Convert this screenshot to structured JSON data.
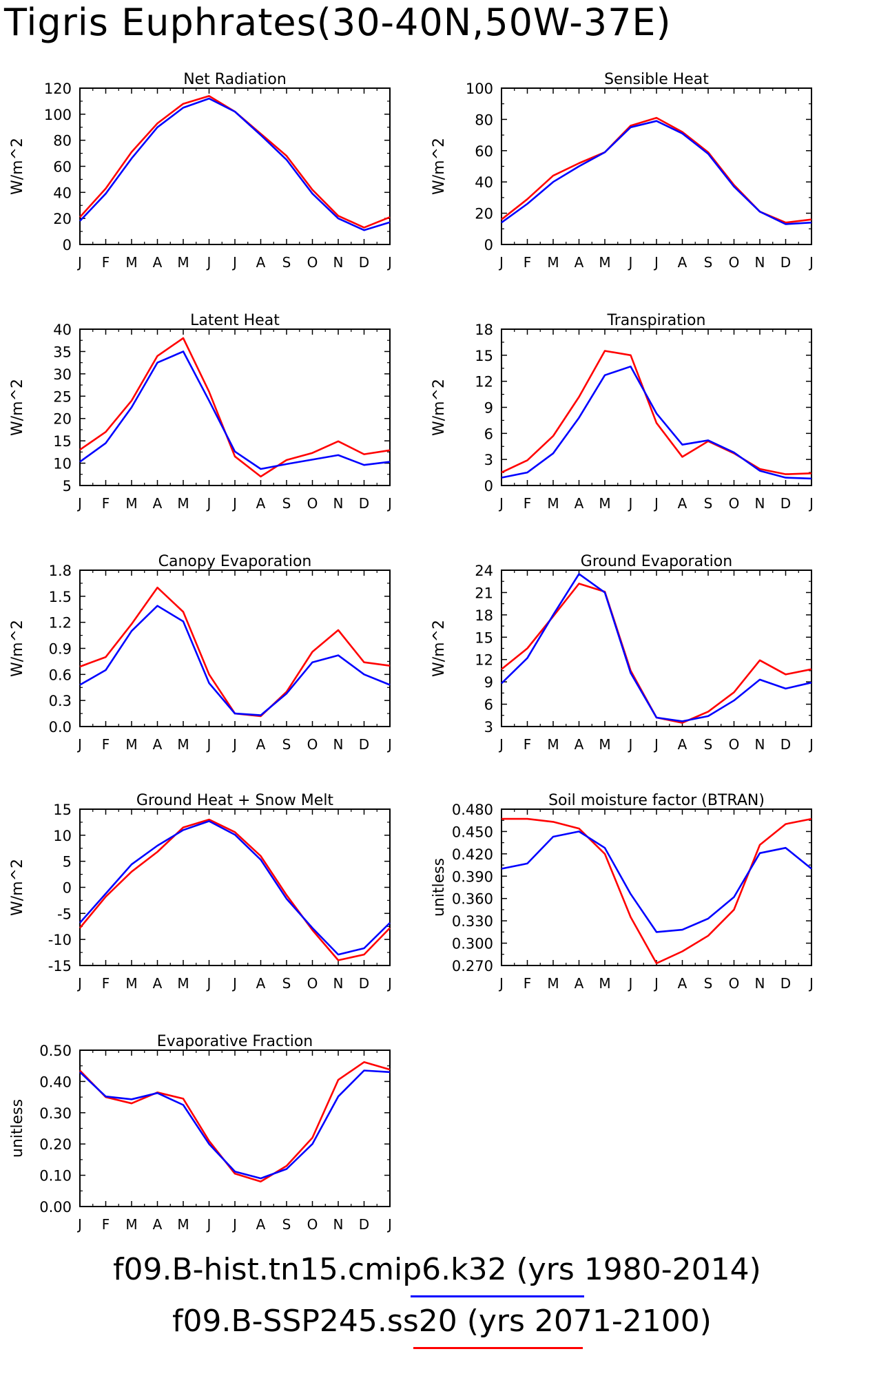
{
  "page": {
    "title": "Tigris Euphrates(30-40N,50W-37E)"
  },
  "colors": {
    "hist": "#0000ff",
    "future": "#ff0000"
  },
  "legend": [
    {
      "label": "f09.B-hist.tn15.cmip6.k32 (yrs 1980-2014)",
      "color": "#0000ff"
    },
    {
      "label": "f09.B-SSP245.ss20 (yrs 2071-2100)",
      "color": "#ff0000"
    }
  ],
  "chart_data": [
    {
      "type": "line",
      "title": "Net Radiation",
      "ylabel": "W/m^2",
      "categories": [
        "J",
        "F",
        "M",
        "A",
        "M",
        "J",
        "J",
        "A",
        "S",
        "O",
        "N",
        "D",
        "J"
      ],
      "ylim": [
        0,
        120
      ],
      "yticks": [
        0,
        20,
        40,
        60,
        80,
        100,
        120
      ],
      "ytick_labels": [
        "0",
        "20",
        "40",
        "60",
        "80",
        "100",
        "120"
      ],
      "series": [
        {
          "color": "#ff0000",
          "values": [
            21,
            43,
            71,
            93,
            108,
            114,
            102,
            85,
            68,
            42,
            22,
            13,
            21
          ]
        },
        {
          "color": "#0000ff",
          "values": [
            18,
            39,
            66,
            90,
            105,
            112,
            102,
            84,
            65,
            39,
            20,
            11,
            17
          ]
        }
      ]
    },
    {
      "type": "line",
      "title": "Sensible Heat",
      "ylabel": "W/m^2",
      "categories": [
        "J",
        "F",
        "M",
        "A",
        "M",
        "J",
        "J",
        "A",
        "S",
        "O",
        "N",
        "D",
        "J"
      ],
      "ylim": [
        0,
        100
      ],
      "yticks": [
        0,
        20,
        40,
        60,
        80,
        100
      ],
      "ytick_labels": [
        "0",
        "20",
        "40",
        "60",
        "80",
        "100"
      ],
      "series": [
        {
          "color": "#ff0000",
          "values": [
            16,
            29,
            44,
            52,
            59,
            76,
            81,
            72,
            59,
            38,
            21,
            14,
            16
          ]
        },
        {
          "color": "#0000ff",
          "values": [
            14,
            26,
            40,
            50,
            59,
            75,
            79,
            71,
            58,
            37,
            21,
            13,
            14
          ]
        }
      ]
    },
    {
      "type": "line",
      "title": "Latent Heat",
      "ylabel": "W/m^2",
      "categories": [
        "J",
        "F",
        "M",
        "A",
        "M",
        "J",
        "J",
        "A",
        "S",
        "O",
        "N",
        "D",
        "J"
      ],
      "ylim": [
        5,
        40
      ],
      "yticks": [
        5,
        10,
        15,
        20,
        25,
        30,
        35,
        40
      ],
      "ytick_labels": [
        "5",
        "10",
        "15",
        "20",
        "25",
        "30",
        "35",
        "40"
      ],
      "series": [
        {
          "color": "#ff0000",
          "values": [
            13,
            17,
            24,
            34,
            38,
            26,
            11.5,
            7,
            10.7,
            12.3,
            14.9,
            12,
            12.9
          ]
        },
        {
          "color": "#0000ff",
          "values": [
            10.3,
            14.5,
            22.5,
            32.5,
            35,
            24,
            12.6,
            8.7,
            9.8,
            10.8,
            11.8,
            9.6,
            10.3
          ]
        }
      ]
    },
    {
      "type": "line",
      "title": "Transpiration",
      "ylabel": "W/m^2",
      "categories": [
        "J",
        "F",
        "M",
        "A",
        "M",
        "J",
        "J",
        "A",
        "S",
        "O",
        "N",
        "D",
        "J"
      ],
      "ylim": [
        0,
        18
      ],
      "yticks": [
        0,
        3,
        6,
        9,
        12,
        15,
        18
      ],
      "ytick_labels": [
        "0",
        "3",
        "6",
        "9",
        "12",
        "15",
        "18"
      ],
      "series": [
        {
          "color": "#ff0000",
          "values": [
            1.5,
            2.9,
            5.7,
            10.2,
            15.5,
            15,
            7.2,
            3.3,
            5.1,
            3.7,
            1.9,
            1.3,
            1.4
          ]
        },
        {
          "color": "#0000ff",
          "values": [
            0.9,
            1.5,
            3.7,
            7.8,
            12.7,
            13.7,
            8.3,
            4.7,
            5.2,
            3.8,
            1.7,
            0.9,
            0.8
          ]
        }
      ]
    },
    {
      "type": "line",
      "title": "Canopy Evaporation",
      "ylabel": "W/m^2",
      "categories": [
        "J",
        "F",
        "M",
        "A",
        "M",
        "J",
        "J",
        "A",
        "S",
        "O",
        "N",
        "D",
        "J"
      ],
      "ylim": [
        0,
        1.8
      ],
      "yticks": [
        0,
        0.3,
        0.6,
        0.9,
        1.2,
        1.5,
        1.8
      ],
      "ytick_labels": [
        "0.0",
        "0.3",
        "0.6",
        "0.9",
        "1.2",
        "1.5",
        "1.8"
      ],
      "series": [
        {
          "color": "#ff0000",
          "values": [
            0.69,
            0.8,
            1.18,
            1.6,
            1.32,
            0.6,
            0.15,
            0.12,
            0.4,
            0.86,
            1.11,
            0.74,
            0.7
          ]
        },
        {
          "color": "#0000ff",
          "values": [
            0.48,
            0.65,
            1.1,
            1.39,
            1.21,
            0.5,
            0.15,
            0.13,
            0.38,
            0.74,
            0.82,
            0.6,
            0.48
          ]
        }
      ]
    },
    {
      "type": "line",
      "title": "Ground Evaporation",
      "ylabel": "W/m^2",
      "categories": [
        "J",
        "F",
        "M",
        "A",
        "M",
        "J",
        "J",
        "A",
        "S",
        "O",
        "N",
        "D",
        "J"
      ],
      "ylim": [
        3,
        24
      ],
      "yticks": [
        3,
        6,
        9,
        12,
        15,
        18,
        21,
        24
      ],
      "ytick_labels": [
        "3",
        "6",
        "9",
        "12",
        "15",
        "18",
        "21",
        "24"
      ],
      "series": [
        {
          "color": "#ff0000",
          "values": [
            10.7,
            13.5,
            17.8,
            22.2,
            21.1,
            10.5,
            4.2,
            3.5,
            5,
            7.6,
            11.9,
            10,
            10.7
          ]
        },
        {
          "color": "#0000ff",
          "values": [
            8.8,
            12.2,
            18,
            23.5,
            21,
            10.2,
            4.2,
            3.7,
            4.4,
            6.5,
            9.3,
            8.1,
            8.9
          ]
        }
      ]
    },
    {
      "type": "line",
      "title": "Ground Heat + Snow Melt",
      "ylabel": "W/m^2",
      "categories": [
        "J",
        "F",
        "M",
        "A",
        "M",
        "J",
        "J",
        "A",
        "S",
        "O",
        "N",
        "D",
        "J"
      ],
      "ylim": [
        -15,
        15
      ],
      "yticks": [
        -15,
        -10,
        -5,
        0,
        5,
        10,
        15
      ],
      "ytick_labels": [
        "-15",
        "-10",
        "-5",
        "0",
        "5",
        "10",
        "15"
      ],
      "series": [
        {
          "color": "#ff0000",
          "values": [
            -7.8,
            -1.8,
            3,
            6.8,
            11.5,
            13,
            10.6,
            6,
            -1.5,
            -8.2,
            -14,
            -12.9,
            -7.8
          ]
        },
        {
          "color": "#0000ff",
          "values": [
            -6.8,
            -1.2,
            4.4,
            8,
            11,
            12.7,
            10.1,
            5.3,
            -2.2,
            -7.8,
            -12.9,
            -11.7,
            -6.8
          ]
        }
      ]
    },
    {
      "type": "line",
      "title": "Soil moisture factor (BTRAN)",
      "ylabel": "unitless",
      "categories": [
        "J",
        "F",
        "M",
        "A",
        "M",
        "J",
        "J",
        "A",
        "S",
        "O",
        "N",
        "D",
        "J"
      ],
      "ylim": [
        0.27,
        0.48
      ],
      "yticks": [
        0.27,
        0.3,
        0.33,
        0.36,
        0.39,
        0.42,
        0.45,
        0.48
      ],
      "ytick_labels": [
        "0.270",
        "0.300",
        "0.330",
        "0.360",
        "0.390",
        "0.420",
        "0.450",
        "0.480"
      ],
      "series": [
        {
          "color": "#ff0000",
          "values": [
            0.467,
            0.467,
            0.463,
            0.454,
            0.42,
            0.335,
            0.273,
            0.289,
            0.31,
            0.345,
            0.432,
            0.46,
            0.467
          ]
        },
        {
          "color": "#0000ff",
          "values": [
            0.4,
            0.407,
            0.443,
            0.45,
            0.428,
            0.366,
            0.315,
            0.318,
            0.333,
            0.362,
            0.421,
            0.428,
            0.4
          ]
        }
      ]
    },
    {
      "type": "line",
      "title": "Evaporative Fraction",
      "ylabel": "unitless",
      "categories": [
        "J",
        "F",
        "M",
        "A",
        "M",
        "J",
        "J",
        "A",
        "S",
        "O",
        "N",
        "D",
        "J"
      ],
      "ylim": [
        0,
        0.5
      ],
      "yticks": [
        0,
        0.1,
        0.2,
        0.3,
        0.4,
        0.5
      ],
      "ytick_labels": [
        "0.00",
        "0.10",
        "0.20",
        "0.30",
        "0.40",
        "0.50"
      ],
      "series": [
        {
          "color": "#ff0000",
          "values": [
            0.435,
            0.35,
            0.33,
            0.365,
            0.345,
            0.21,
            0.105,
            0.08,
            0.13,
            0.22,
            0.405,
            0.462,
            0.438
          ]
        },
        {
          "color": "#0000ff",
          "values": [
            0.43,
            0.352,
            0.343,
            0.363,
            0.325,
            0.2,
            0.112,
            0.09,
            0.12,
            0.2,
            0.352,
            0.435,
            0.43
          ]
        }
      ]
    }
  ]
}
